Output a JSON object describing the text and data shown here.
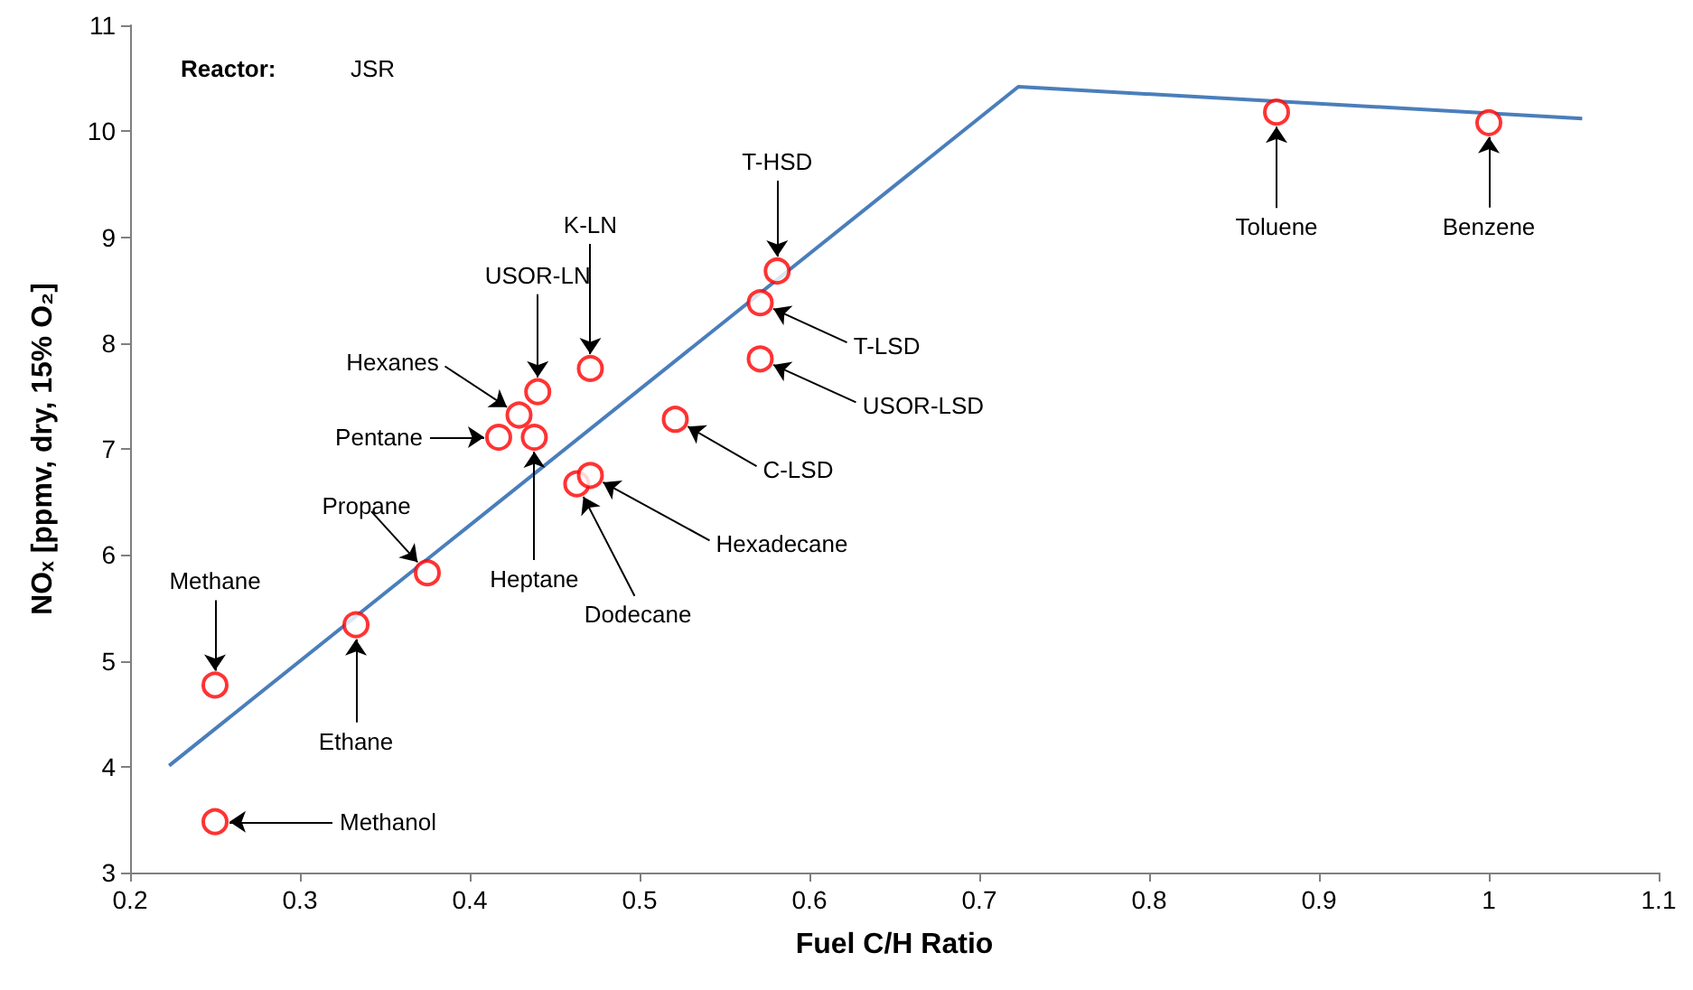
{
  "chart_data": {
    "type": "scatter",
    "xlabel": "Fuel C/H Ratio",
    "ylabel": "NOₓ [ppmv, dry, 15% O₂]",
    "xlim": [
      0.2,
      1.1
    ],
    "xticks": [
      0.2,
      0.3,
      0.4,
      0.5,
      0.6,
      0.7,
      0.8,
      0.9,
      1.0,
      1.1
    ],
    "ylim": [
      3,
      11
    ],
    "yticks": [
      3,
      4,
      5,
      6,
      7,
      8,
      9,
      10,
      11
    ],
    "grid": false,
    "marker": "circle",
    "series": [
      {
        "color": "#ff0000",
        "x": [
          0.25,
          0.25,
          0.333,
          0.375,
          0.417,
          0.429,
          0.438,
          0.44,
          0.471,
          0.463,
          0.471,
          0.521,
          0.571,
          0.571,
          0.581,
          0.875,
          1.0
        ],
        "values": [
          4.77,
          3.48,
          5.34,
          5.83,
          7.11,
          7.32,
          7.11,
          7.54,
          7.76,
          6.67,
          6.75,
          7.28,
          8.38,
          7.85,
          8.68,
          10.18,
          10.08
        ]
      },
      {
        "type": "line",
        "color": "#4a7ebb",
        "marker": "none",
        "line_style": "solid",
        "x": [
          0.223,
          0.723,
          1.055
        ],
        "values": [
          4.01,
          10.42,
          10.12
        ]
      }
    ],
    "annotations": [
      "Reactor:",
      "JSR",
      {
        "text": "Methane",
        "x": 0.25,
        "y": 4.77
      },
      {
        "text": "Methanol",
        "x": 0.25,
        "y": 3.48
      },
      {
        "text": "Ethane",
        "x": 0.333,
        "y": 5.34
      },
      {
        "text": "Propane",
        "x": 0.375,
        "y": 5.83
      },
      {
        "text": "Pentane",
        "x": 0.417,
        "y": 7.11
      },
      {
        "text": "Hexanes",
        "x": 0.429,
        "y": 7.32
      },
      {
        "text": "Heptane",
        "x": 0.438,
        "y": 7.11
      },
      {
        "text": "USOR-LN",
        "x": 0.44,
        "y": 7.54
      },
      {
        "text": "K-LN",
        "x": 0.471,
        "y": 7.76
      },
      {
        "text": "Dodecane",
        "x": 0.463,
        "y": 6.67
      },
      {
        "text": "Hexadecane",
        "x": 0.471,
        "y": 6.75
      },
      {
        "text": "C-LSD",
        "x": 0.521,
        "y": 7.28
      },
      {
        "text": "T-LSD",
        "x": 0.571,
        "y": 8.38
      },
      {
        "text": "USOR-LSD",
        "x": 0.571,
        "y": 7.85
      },
      {
        "text": "T-HSD",
        "x": 0.581,
        "y": 8.68
      },
      {
        "text": "Toluene",
        "x": 0.875,
        "y": 10.18
      },
      {
        "text": "Benzene",
        "x": 1.0,
        "y": 10.08
      }
    ]
  }
}
